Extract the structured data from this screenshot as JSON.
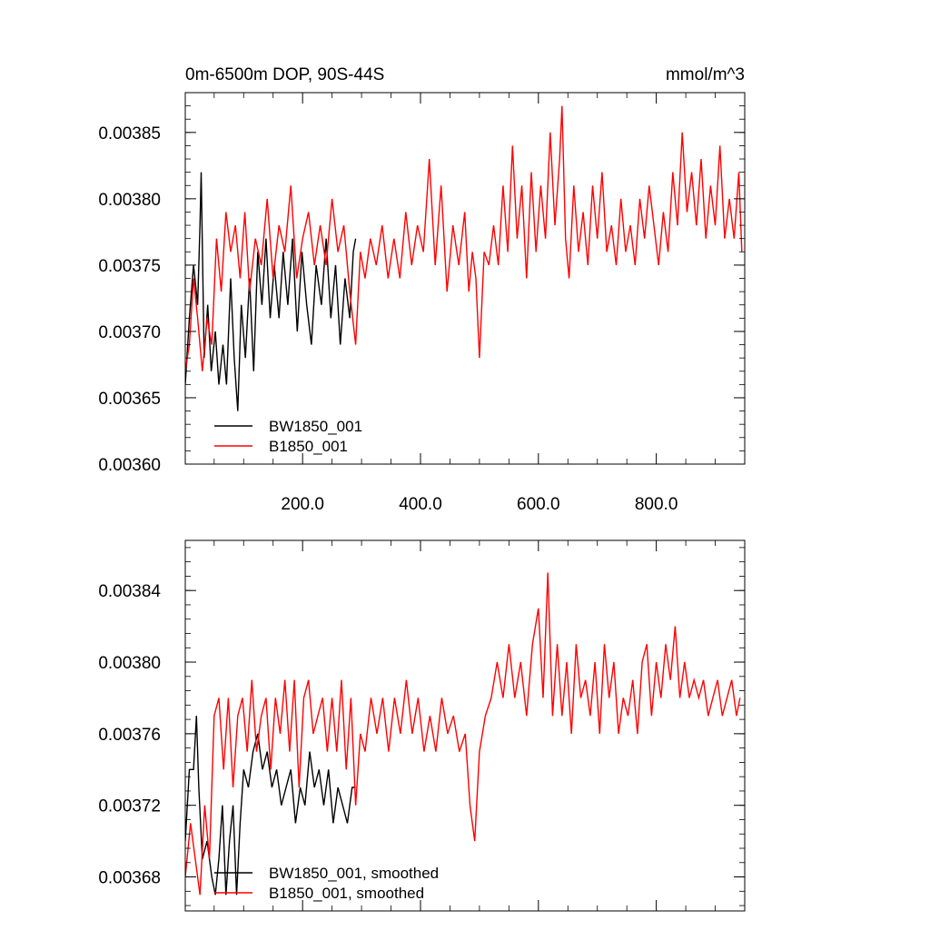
{
  "figure": {
    "title_left": "0m-6500m DOP, 90S-44S",
    "title_right": "mmol/m^3"
  },
  "colors": {
    "series1": "#000000",
    "series2": "#ff0000"
  },
  "chart_data": [
    {
      "type": "line",
      "title": "0m-6500m DOP, 90S-44S",
      "units": "mmol/m^3",
      "xlim": [
        1,
        950
      ],
      "ylim": [
        0.0036,
        0.00388
      ],
      "x_tick_labels": [
        "200.0",
        "400.0",
        "600.0",
        "800.0"
      ],
      "x_ticks": [
        200,
        400,
        600,
        800
      ],
      "y_ticks": [
        0.0036,
        0.00365,
        0.0037,
        0.00375,
        0.0038,
        0.00385
      ],
      "y_tick_labels": [
        "0.00360",
        "0.00365",
        "0.00370",
        "0.00375",
        "0.00380",
        "0.00385"
      ],
      "legend_position": "bottom-left",
      "series": [
        {
          "name": "BW1850_001",
          "color": "#000000",
          "x": [
            1,
            8,
            15,
            22,
            26,
            28,
            33,
            39,
            45,
            52,
            58,
            65,
            71,
            78,
            84,
            90,
            96,
            103,
            110,
            117,
            124,
            131,
            138,
            145,
            152,
            160,
            167,
            175,
            183,
            191,
            199,
            207,
            215,
            223,
            232,
            240,
            248,
            256,
            264,
            272,
            280,
            286,
            290
          ],
          "values": [
            0.00366,
            0.00371,
            0.00375,
            0.00372,
            0.00378,
            0.00382,
            0.00368,
            0.00372,
            0.00367,
            0.0037,
            0.00366,
            0.00369,
            0.00366,
            0.00374,
            0.00368,
            0.00364,
            0.00372,
            0.00368,
            0.00374,
            0.00367,
            0.00376,
            0.00372,
            0.00377,
            0.00371,
            0.00375,
            0.00371,
            0.00376,
            0.00372,
            0.00377,
            0.0037,
            0.00376,
            0.00372,
            0.00369,
            0.00375,
            0.00372,
            0.00377,
            0.00371,
            0.00375,
            0.00369,
            0.00374,
            0.00371,
            0.00376,
            0.00377
          ]
        },
        {
          "name": "B1850_001",
          "color": "#ff0000",
          "x": [
            1,
            8,
            15,
            22,
            30,
            38,
            46,
            54,
            62,
            70,
            78,
            86,
            94,
            102,
            110,
            120,
            130,
            140,
            150,
            160,
            170,
            180,
            190,
            200,
            210,
            220,
            230,
            240,
            250,
            260,
            270,
            280,
            290,
            298,
            306,
            315,
            325,
            335,
            345,
            355,
            365,
            375,
            385,
            395,
            405,
            415,
            425,
            435,
            445,
            455,
            465,
            475,
            482,
            488,
            494,
            500,
            508,
            516,
            524,
            532,
            540,
            548,
            556,
            564,
            572,
            580,
            588,
            596,
            604,
            612,
            620,
            628,
            636,
            640,
            646,
            652,
            660,
            668,
            676,
            684,
            692,
            700,
            708,
            716,
            724,
            732,
            740,
            748,
            756,
            764,
            772,
            780,
            788,
            796,
            804,
            812,
            820,
            828,
            836,
            844,
            852,
            860,
            868,
            876,
            884,
            892,
            900,
            908,
            916,
            924,
            932,
            940,
            945
          ],
          "values": [
            0.00367,
            0.00369,
            0.00374,
            0.00371,
            0.00367,
            0.00371,
            0.00369,
            0.00377,
            0.00373,
            0.00379,
            0.00376,
            0.00378,
            0.00374,
            0.00379,
            0.00373,
            0.00377,
            0.00375,
            0.0038,
            0.00374,
            0.00378,
            0.00376,
            0.00381,
            0.00374,
            0.00377,
            0.00379,
            0.00375,
            0.00378,
            0.00375,
            0.0038,
            0.00376,
            0.00378,
            0.00373,
            0.00369,
            0.00376,
            0.00374,
            0.00377,
            0.00375,
            0.00378,
            0.00374,
            0.00377,
            0.00374,
            0.00379,
            0.00375,
            0.00378,
            0.00376,
            0.00383,
            0.00375,
            0.00381,
            0.00373,
            0.00378,
            0.00375,
            0.00379,
            0.00373,
            0.00376,
            0.00374,
            0.00368,
            0.00376,
            0.00375,
            0.00378,
            0.00375,
            0.00381,
            0.00376,
            0.00384,
            0.00377,
            0.00381,
            0.00374,
            0.00382,
            0.00376,
            0.00381,
            0.00377,
            0.00385,
            0.00378,
            0.00383,
            0.00387,
            0.00377,
            0.00374,
            0.00381,
            0.00376,
            0.00379,
            0.00375,
            0.00381,
            0.00377,
            0.00382,
            0.00376,
            0.00378,
            0.00375,
            0.0038,
            0.00376,
            0.00378,
            0.00375,
            0.0038,
            0.00377,
            0.00381,
            0.00378,
            0.00375,
            0.00379,
            0.00376,
            0.00382,
            0.00378,
            0.00385,
            0.00379,
            0.00382,
            0.00378,
            0.00383,
            0.00377,
            0.00381,
            0.00378,
            0.00384,
            0.00377,
            0.0038,
            0.00377,
            0.00382,
            0.00376
          ]
        }
      ]
    },
    {
      "type": "line",
      "xlim": [
        1,
        950
      ],
      "ylim": [
        0.003661,
        0.003868
      ],
      "x_ticks": [
        200,
        400,
        600,
        800
      ],
      "y_ticks": [
        0.00368,
        0.00372,
        0.00376,
        0.0038,
        0.00384
      ],
      "y_tick_labels": [
        "0.00368",
        "0.00372",
        "0.00376",
        "0.00380",
        "0.00384"
      ],
      "legend_position": "bottom-left",
      "series": [
        {
          "name": "BW1850_001, smoothed",
          "color": "#000000",
          "x": [
            1,
            8,
            15,
            20,
            24,
            30,
            38,
            46,
            52,
            58,
            64,
            70,
            76,
            82,
            88,
            94,
            100,
            108,
            116,
            124,
            132,
            140,
            148,
            156,
            164,
            172,
            180,
            188,
            196,
            204,
            212,
            220,
            228,
            236,
            244,
            252,
            260,
            268,
            276,
            284,
            290
          ],
          "values": [
            0.0037,
            0.00374,
            0.00374,
            0.00377,
            0.00373,
            0.00369,
            0.0037,
            0.00368,
            0.00367,
            0.00369,
            0.00372,
            0.00367,
            0.0037,
            0.00372,
            0.00367,
            0.00371,
            0.00374,
            0.00373,
            0.00375,
            0.00376,
            0.00374,
            0.00375,
            0.00373,
            0.00374,
            0.00372,
            0.00373,
            0.00374,
            0.00371,
            0.00373,
            0.00372,
            0.00375,
            0.00373,
            0.00374,
            0.00372,
            0.00374,
            0.00371,
            0.00373,
            0.00372,
            0.00371,
            0.00373,
            0.00373
          ]
        },
        {
          "name": "B1850_001, smoothed",
          "color": "#ff0000",
          "x": [
            1,
            10,
            18,
            26,
            34,
            42,
            50,
            58,
            66,
            74,
            82,
            90,
            98,
            106,
            114,
            122,
            130,
            138,
            146,
            154,
            162,
            170,
            178,
            186,
            194,
            202,
            210,
            218,
            226,
            234,
            242,
            250,
            258,
            266,
            274,
            282,
            290,
            298,
            306,
            316,
            326,
            336,
            346,
            356,
            366,
            376,
            386,
            396,
            406,
            416,
            426,
            436,
            446,
            456,
            466,
            476,
            484,
            492,
            500,
            510,
            520,
            530,
            540,
            550,
            560,
            570,
            580,
            590,
            600,
            608,
            616,
            624,
            632,
            640,
            648,
            656,
            664,
            672,
            680,
            688,
            696,
            704,
            712,
            720,
            728,
            736,
            744,
            752,
            760,
            768,
            776,
            784,
            792,
            800,
            808,
            816,
            824,
            832,
            840,
            848,
            856,
            864,
            872,
            880,
            888,
            896,
            904,
            912,
            920,
            928,
            936,
            942
          ],
          "values": [
            0.00368,
            0.00371,
            0.00369,
            0.00367,
            0.00372,
            0.00369,
            0.00377,
            0.00378,
            0.00374,
            0.00378,
            0.00373,
            0.00377,
            0.00378,
            0.00375,
            0.00379,
            0.00375,
            0.00377,
            0.00378,
            0.00374,
            0.00378,
            0.00376,
            0.00379,
            0.00375,
            0.00379,
            0.00373,
            0.00378,
            0.00379,
            0.00376,
            0.00377,
            0.00378,
            0.00375,
            0.00378,
            0.00375,
            0.00379,
            0.00374,
            0.00378,
            0.00372,
            0.00376,
            0.00375,
            0.00378,
            0.00376,
            0.00378,
            0.00375,
            0.00378,
            0.00376,
            0.00379,
            0.00376,
            0.00378,
            0.00375,
            0.00377,
            0.00375,
            0.00378,
            0.00376,
            0.00377,
            0.00375,
            0.00376,
            0.00372,
            0.0037,
            0.00375,
            0.00377,
            0.00378,
            0.0038,
            0.00378,
            0.00381,
            0.00378,
            0.0038,
            0.00377,
            0.00381,
            0.00383,
            0.00378,
            0.00385,
            0.00377,
            0.00381,
            0.00377,
            0.0038,
            0.00376,
            0.00381,
            0.00378,
            0.00379,
            0.00377,
            0.0038,
            0.00376,
            0.00381,
            0.00378,
            0.0038,
            0.00376,
            0.00378,
            0.00377,
            0.00379,
            0.00376,
            0.0038,
            0.00381,
            0.00377,
            0.0038,
            0.00378,
            0.00381,
            0.00379,
            0.00382,
            0.00378,
            0.0038,
            0.00378,
            0.00379,
            0.00378,
            0.00379,
            0.00377,
            0.00378,
            0.00379,
            0.00377,
            0.00378,
            0.00379,
            0.00377,
            0.00378
          ]
        }
      ]
    }
  ]
}
